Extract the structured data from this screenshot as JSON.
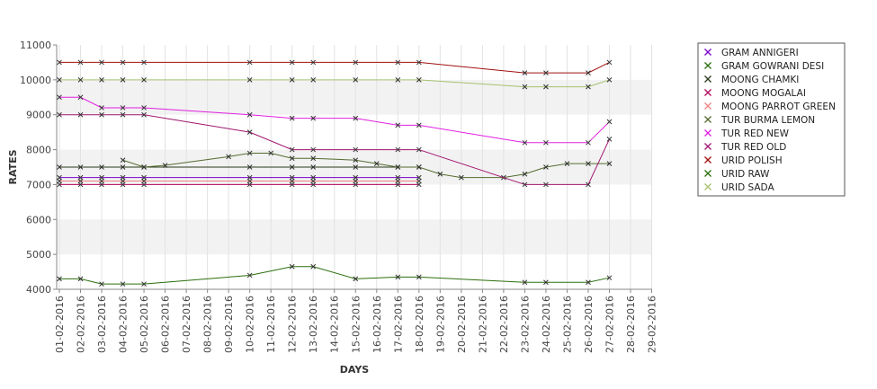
{
  "chart_data": {
    "type": "line",
    "title": "",
    "xlabel": "DAYS",
    "ylabel": "RATES",
    "ylim": [
      4000,
      11000
    ],
    "yticks": [
      "4000",
      "5000",
      "6000",
      "7000",
      "8000",
      "9000",
      "10000",
      "11000"
    ],
    "categories": [
      "01-02-2016",
      "02-02-2016",
      "03-02-2016",
      "04-02-2016",
      "05-02-2016",
      "06-02-2016",
      "07-02-2016",
      "08-02-2016",
      "09-02-2016",
      "10-02-2016",
      "11-02-2016",
      "12-02-2016",
      "13-02-2016",
      "14-02-2016",
      "15-02-2016",
      "16-02-2016",
      "17-02-2016",
      "18-02-2016",
      "19-02-2016",
      "20-02-2016",
      "21-02-2016",
      "22-02-2016",
      "23-02-2016",
      "24-02-2016",
      "25-02-2016",
      "26-02-2016",
      "27-02-2016",
      "28-02-2016",
      "29-02-2016"
    ],
    "grid": "vertical lines at each category; alternating shaded horizontal bands",
    "legend_position": "right",
    "series": [
      {
        "name": "GRAM ANNIGERI",
        "color": "#7a00cc",
        "points": [
          [
            "01-02-2016",
            7200
          ],
          [
            "02-02-2016",
            7200
          ],
          [
            "03-02-2016",
            7200
          ],
          [
            "04-02-2016",
            7200
          ],
          [
            "05-02-2016",
            7200
          ],
          [
            "10-02-2016",
            7200
          ],
          [
            "12-02-2016",
            7200
          ],
          [
            "13-02-2016",
            7200
          ],
          [
            "15-02-2016",
            7200
          ],
          [
            "17-02-2016",
            7200
          ],
          [
            "18-02-2016",
            7200
          ]
        ]
      },
      {
        "name": "GRAM GOWRANI DESI",
        "color": "#2a6e0a",
        "points": [
          [
            "01-02-2016",
            4300
          ],
          [
            "02-02-2016",
            4300
          ],
          [
            "03-02-2016",
            4150
          ],
          [
            "04-02-2016",
            4150
          ],
          [
            "05-02-2016",
            4150
          ],
          [
            "10-02-2016",
            4400
          ],
          [
            "12-02-2016",
            4650
          ],
          [
            "13-02-2016",
            4650
          ],
          [
            "15-02-2016",
            4300
          ],
          [
            "17-02-2016",
            4350
          ],
          [
            "18-02-2016",
            4350
          ],
          [
            "23-02-2016",
            4200
          ],
          [
            "24-02-2016",
            4200
          ],
          [
            "26-02-2016",
            4200
          ],
          [
            "27-02-2016",
            4330
          ]
        ]
      },
      {
        "name": "MOONG CHAMKI",
        "color": "#2a3a1a",
        "points": [
          [
            "01-02-2016",
            7500
          ],
          [
            "02-02-2016",
            7500
          ],
          [
            "03-02-2016",
            7500
          ],
          [
            "04-02-2016",
            7500
          ],
          [
            "05-02-2016",
            7500
          ],
          [
            "10-02-2016",
            7500
          ],
          [
            "12-02-2016",
            7500
          ],
          [
            "13-02-2016",
            7500
          ],
          [
            "15-02-2016",
            7500
          ],
          [
            "17-02-2016",
            7500
          ],
          [
            "18-02-2016",
            7500
          ]
        ]
      },
      {
        "name": "MOONG MOGALAI",
        "color": "#b0005a",
        "points": [
          [
            "01-02-2016",
            7000
          ],
          [
            "02-02-2016",
            7000
          ],
          [
            "03-02-2016",
            7000
          ],
          [
            "04-02-2016",
            7000
          ],
          [
            "05-02-2016",
            7000
          ],
          [
            "10-02-2016",
            7000
          ],
          [
            "12-02-2016",
            7000
          ],
          [
            "13-02-2016",
            7000
          ],
          [
            "15-02-2016",
            7000
          ],
          [
            "17-02-2016",
            7000
          ],
          [
            "18-02-2016",
            7000
          ]
        ]
      },
      {
        "name": "MOONG PARROT GREEN",
        "color": "#f08080",
        "points": [
          [
            "01-02-2016",
            7100
          ],
          [
            "02-02-2016",
            7100
          ],
          [
            "03-02-2016",
            7100
          ],
          [
            "04-02-2016",
            7100
          ],
          [
            "05-02-2016",
            7100
          ],
          [
            "10-02-2016",
            7100
          ],
          [
            "12-02-2016",
            7100
          ],
          [
            "13-02-2016",
            7100
          ],
          [
            "15-02-2016",
            7100
          ],
          [
            "17-02-2016",
            7100
          ],
          [
            "18-02-2016",
            7100
          ]
        ]
      },
      {
        "name": "TUR BURMA LEMON",
        "color": "#556b2f",
        "points": [
          [
            "04-02-2016",
            7700
          ],
          [
            "05-02-2016",
            7500
          ],
          [
            "06-02-2016",
            7550
          ],
          [
            "09-02-2016",
            7800
          ],
          [
            "10-02-2016",
            7900
          ],
          [
            "11-02-2016",
            7900
          ],
          [
            "12-02-2016",
            7750
          ],
          [
            "13-02-2016",
            7750
          ],
          [
            "15-02-2016",
            7700
          ],
          [
            "16-02-2016",
            7600
          ],
          [
            "17-02-2016",
            7500
          ],
          [
            "18-02-2016",
            7500
          ],
          [
            "19-02-2016",
            7300
          ],
          [
            "20-02-2016",
            7200
          ],
          [
            "22-02-2016",
            7200
          ],
          [
            "23-02-2016",
            7300
          ],
          [
            "24-02-2016",
            7500
          ],
          [
            "25-02-2016",
            7600
          ],
          [
            "26-02-2016",
            7600
          ],
          [
            "27-02-2016",
            7600
          ]
        ]
      },
      {
        "name": "TUR RED NEW",
        "color": "#e020e0",
        "points": [
          [
            "01-02-2016",
            9500
          ],
          [
            "02-02-2016",
            9500
          ],
          [
            "03-02-2016",
            9200
          ],
          [
            "04-02-2016",
            9200
          ],
          [
            "05-02-2016",
            9200
          ],
          [
            "10-02-2016",
            9000
          ],
          [
            "12-02-2016",
            8900
          ],
          [
            "13-02-2016",
            8900
          ],
          [
            "15-02-2016",
            8900
          ],
          [
            "17-02-2016",
            8700
          ],
          [
            "18-02-2016",
            8700
          ],
          [
            "23-02-2016",
            8200
          ],
          [
            "24-02-2016",
            8200
          ],
          [
            "26-02-2016",
            8200
          ],
          [
            "27-02-2016",
            8800
          ]
        ]
      },
      {
        "name": "TUR RED OLD",
        "color": "#a0146e",
        "points": [
          [
            "01-02-2016",
            9000
          ],
          [
            "02-02-2016",
            9000
          ],
          [
            "03-02-2016",
            9000
          ],
          [
            "04-02-2016",
            9000
          ],
          [
            "05-02-2016",
            9000
          ],
          [
            "10-02-2016",
            8500
          ],
          [
            "12-02-2016",
            8000
          ],
          [
            "13-02-2016",
            8000
          ],
          [
            "15-02-2016",
            8000
          ],
          [
            "17-02-2016",
            8000
          ],
          [
            "18-02-2016",
            8000
          ],
          [
            "23-02-2016",
            7000
          ],
          [
            "24-02-2016",
            7000
          ],
          [
            "26-02-2016",
            7000
          ],
          [
            "27-02-2016",
            8300
          ]
        ]
      },
      {
        "name": "URID POLISH",
        "color": "#a01010",
        "points": [
          [
            "01-02-2016",
            10500
          ],
          [
            "02-02-2016",
            10500
          ],
          [
            "03-02-2016",
            10500
          ],
          [
            "04-02-2016",
            10500
          ],
          [
            "05-02-2016",
            10500
          ],
          [
            "10-02-2016",
            10500
          ],
          [
            "12-02-2016",
            10500
          ],
          [
            "13-02-2016",
            10500
          ],
          [
            "15-02-2016",
            10500
          ],
          [
            "17-02-2016",
            10500
          ],
          [
            "18-02-2016",
            10500
          ],
          [
            "23-02-2016",
            10200
          ],
          [
            "24-02-2016",
            10200
          ],
          [
            "26-02-2016",
            10200
          ],
          [
            "27-02-2016",
            10500
          ]
        ]
      },
      {
        "name": "URID RAW",
        "color": "#2a6e0a",
        "points": []
      },
      {
        "name": "URID SADA",
        "color": "#a8c070",
        "points": [
          [
            "01-02-2016",
            10000
          ],
          [
            "02-02-2016",
            10000
          ],
          [
            "03-02-2016",
            10000
          ],
          [
            "04-02-2016",
            10000
          ],
          [
            "05-02-2016",
            10000
          ],
          [
            "10-02-2016",
            10000
          ],
          [
            "12-02-2016",
            10000
          ],
          [
            "13-02-2016",
            10000
          ],
          [
            "15-02-2016",
            10000
          ],
          [
            "17-02-2016",
            10000
          ],
          [
            "18-02-2016",
            10000
          ],
          [
            "23-02-2016",
            9800
          ],
          [
            "24-02-2016",
            9800
          ],
          [
            "26-02-2016",
            9800
          ],
          [
            "27-02-2016",
            10000
          ]
        ]
      }
    ]
  }
}
